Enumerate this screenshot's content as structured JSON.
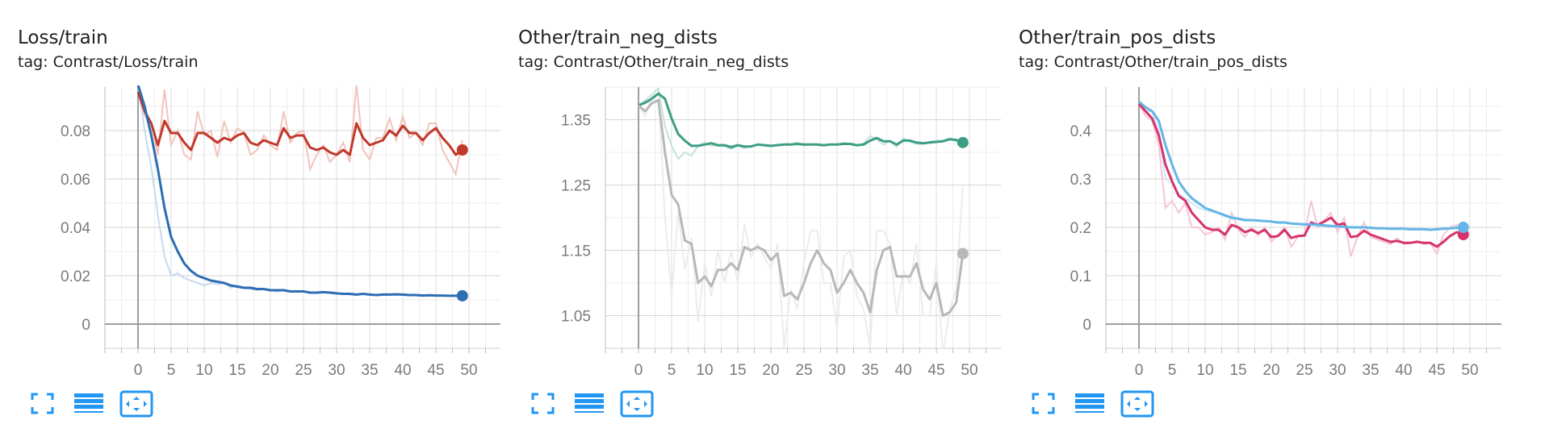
{
  "chart_data": [
    {
      "type": "line",
      "title": "Loss/train",
      "subtitle": "tag: Contrast/Loss/train",
      "xlim": [
        -5,
        55
      ],
      "ylim": [
        -0.01,
        0.098
      ],
      "xticks": [
        "0",
        "5",
        "10",
        "15",
        "20",
        "25",
        "30",
        "35",
        "40",
        "45",
        "50"
      ],
      "xtick_values": [
        0,
        5,
        10,
        15,
        20,
        25,
        30,
        35,
        40,
        45,
        50
      ],
      "yticks": [
        "0",
        "0.02",
        "0.04",
        "0.06",
        "0.08"
      ],
      "ytick_values": [
        0,
        0.02,
        0.04,
        0.06,
        0.08
      ],
      "grid": true,
      "series": [
        {
          "color": "#c0392b",
          "raw_color": "#f1c4bb",
          "x": [
            0,
            1,
            2,
            3,
            4,
            5,
            6,
            7,
            8,
            9,
            10,
            11,
            12,
            13,
            14,
            15,
            16,
            17,
            18,
            19,
            20,
            21,
            22,
            23,
            24,
            25,
            26,
            27,
            28,
            29,
            30,
            31,
            32,
            33,
            34,
            35,
            36,
            37,
            38,
            39,
            40,
            41,
            42,
            43,
            44,
            45,
            46,
            47,
            48,
            49
          ],
          "smoothed": [
            0.096,
            0.088,
            0.083,
            0.074,
            0.084,
            0.079,
            0.079,
            0.075,
            0.072,
            0.079,
            0.079,
            0.077,
            0.075,
            0.077,
            0.076,
            0.078,
            0.079,
            0.075,
            0.074,
            0.076,
            0.075,
            0.074,
            0.081,
            0.077,
            0.078,
            0.078,
            0.073,
            0.072,
            0.073,
            0.071,
            0.07,
            0.072,
            0.07,
            0.083,
            0.077,
            0.074,
            0.075,
            0.076,
            0.08,
            0.078,
            0.082,
            0.079,
            0.079,
            0.076,
            0.079,
            0.081,
            0.077,
            0.074,
            0.07,
            0.072
          ],
          "raw": [
            0.1,
            0.086,
            0.083,
            0.07,
            0.097,
            0.074,
            0.08,
            0.07,
            0.068,
            0.088,
            0.078,
            0.08,
            0.069,
            0.084,
            0.075,
            0.081,
            0.079,
            0.07,
            0.072,
            0.078,
            0.074,
            0.072,
            0.088,
            0.075,
            0.079,
            0.08,
            0.064,
            0.07,
            0.074,
            0.067,
            0.07,
            0.075,
            0.067,
            0.099,
            0.072,
            0.068,
            0.077,
            0.077,
            0.085,
            0.076,
            0.086,
            0.077,
            0.079,
            0.074,
            0.083,
            0.083,
            0.072,
            0.067,
            0.062,
            0.076
          ]
        },
        {
          "color": "#2d6db3",
          "raw_color": "#c6daf0",
          "x": [
            0,
            1,
            2,
            3,
            4,
            5,
            6,
            7,
            8,
            9,
            10,
            11,
            12,
            13,
            14,
            15,
            16,
            17,
            18,
            19,
            20,
            21,
            22,
            23,
            24,
            25,
            26,
            27,
            28,
            29,
            30,
            31,
            32,
            33,
            34,
            35,
            36,
            37,
            38,
            39,
            40,
            41,
            42,
            43,
            44,
            45,
            46,
            47,
            48,
            49
          ],
          "smoothed": [
            0.099,
            0.09,
            0.078,
            0.064,
            0.048,
            0.036,
            0.03,
            0.025,
            0.022,
            0.02,
            0.019,
            0.018,
            0.0175,
            0.017,
            0.016,
            0.0155,
            0.015,
            0.015,
            0.0145,
            0.0145,
            0.014,
            0.014,
            0.014,
            0.0135,
            0.0135,
            0.0135,
            0.013,
            0.013,
            0.0132,
            0.013,
            0.0127,
            0.0125,
            0.0125,
            0.0122,
            0.0125,
            0.0122,
            0.012,
            0.0122,
            0.0122,
            0.0123,
            0.0122,
            0.012,
            0.012,
            0.0118,
            0.0119,
            0.0118,
            0.0118,
            0.0117,
            0.0117,
            0.0117
          ],
          "raw": [
            0.099,
            0.08,
            0.065,
            0.045,
            0.028,
            0.02,
            0.021,
            0.019,
            0.018,
            0.017,
            0.016,
            0.017,
            0.0165,
            0.017,
            0.015,
            0.016,
            0.015,
            0.0145,
            0.014,
            0.0145,
            0.014,
            0.0135,
            0.014,
            0.0135,
            0.0133,
            0.0135,
            0.013,
            0.0128,
            0.0132,
            0.013,
            0.0125,
            0.0125,
            0.0122,
            0.012,
            0.0125,
            0.0122,
            0.012,
            0.0122,
            0.0122,
            0.0123,
            0.012,
            0.0118,
            0.012,
            0.0118,
            0.0119,
            0.0118,
            0.0118,
            0.0116,
            0.0117,
            0.0117
          ]
        }
      ]
    },
    {
      "type": "line",
      "title": "Other/train_neg_dists",
      "subtitle": "tag: Contrast/Other/train_neg_dists",
      "xlim": [
        -5,
        55
      ],
      "ylim": [
        1.0,
        1.4
      ],
      "xticks": [
        "0",
        "5",
        "10",
        "15",
        "20",
        "25",
        "30",
        "35",
        "40",
        "45",
        "50"
      ],
      "xtick_values": [
        0,
        5,
        10,
        15,
        20,
        25,
        30,
        35,
        40,
        45,
        50
      ],
      "yticks": [
        "1.05",
        "1.15",
        "1.25",
        "1.35"
      ],
      "ytick_values": [
        1.05,
        1.15,
        1.25,
        1.35
      ],
      "grid": true,
      "series": [
        {
          "color": "#3d9e84",
          "raw_color": "#c5e3da",
          "x": [
            0,
            1,
            2,
            3,
            4,
            5,
            6,
            7,
            8,
            9,
            10,
            11,
            12,
            13,
            14,
            15,
            16,
            17,
            18,
            19,
            20,
            21,
            22,
            23,
            24,
            25,
            26,
            27,
            28,
            29,
            30,
            31,
            32,
            33,
            34,
            35,
            36,
            37,
            38,
            39,
            40,
            41,
            42,
            43,
            44,
            45,
            46,
            47,
            48,
            49
          ],
          "smoothed": [
            1.372,
            1.376,
            1.382,
            1.39,
            1.382,
            1.352,
            1.328,
            1.318,
            1.31,
            1.31,
            1.312,
            1.314,
            1.311,
            1.311,
            1.308,
            1.311,
            1.309,
            1.309,
            1.312,
            1.311,
            1.31,
            1.311,
            1.312,
            1.312,
            1.313,
            1.312,
            1.312,
            1.312,
            1.311,
            1.312,
            1.312,
            1.313,
            1.313,
            1.311,
            1.312,
            1.318,
            1.322,
            1.317,
            1.317,
            1.312,
            1.318,
            1.318,
            1.315,
            1.314,
            1.315,
            1.316,
            1.317,
            1.32,
            1.319,
            1.315
          ],
          "raw": [
            1.372,
            1.38,
            1.388,
            1.398,
            1.34,
            1.31,
            1.29,
            1.3,
            1.295,
            1.31,
            1.315,
            1.31,
            1.31,
            1.309,
            1.305,
            1.31,
            1.306,
            1.31,
            1.312,
            1.31,
            1.309,
            1.312,
            1.312,
            1.312,
            1.315,
            1.31,
            1.313,
            1.311,
            1.31,
            1.313,
            1.312,
            1.315,
            1.312,
            1.31,
            1.314,
            1.325,
            1.32,
            1.312,
            1.318,
            1.308,
            1.322,
            1.316,
            1.313,
            1.313,
            1.316,
            1.318,
            1.318,
            1.322,
            1.317,
            1.313
          ]
        },
        {
          "color": "#b8b8b8",
          "raw_color": "#ececec",
          "x": [
            0,
            1,
            2,
            3,
            4,
            5,
            6,
            7,
            8,
            9,
            10,
            11,
            12,
            13,
            14,
            15,
            16,
            17,
            18,
            19,
            20,
            21,
            22,
            23,
            24,
            25,
            26,
            27,
            28,
            29,
            30,
            31,
            32,
            33,
            34,
            35,
            36,
            37,
            38,
            39,
            40,
            41,
            42,
            43,
            44,
            45,
            46,
            47,
            48,
            49
          ],
          "smoothed": [
            1.372,
            1.363,
            1.375,
            1.38,
            1.3,
            1.235,
            1.22,
            1.165,
            1.16,
            1.1,
            1.11,
            1.095,
            1.12,
            1.12,
            1.13,
            1.12,
            1.155,
            1.15,
            1.155,
            1.15,
            1.135,
            1.145,
            1.08,
            1.085,
            1.075,
            1.1,
            1.13,
            1.15,
            1.13,
            1.12,
            1.085,
            1.1,
            1.12,
            1.1,
            1.085,
            1.055,
            1.12,
            1.15,
            1.155,
            1.11,
            1.11,
            1.11,
            1.13,
            1.09,
            1.075,
            1.1,
            1.05,
            1.055,
            1.07,
            1.145
          ],
          "raw": [
            1.372,
            1.355,
            1.385,
            1.39,
            1.2,
            1.08,
            1.21,
            1.12,
            1.17,
            1.04,
            1.13,
            1.08,
            1.15,
            1.1,
            1.15,
            1.1,
            1.19,
            1.14,
            1.16,
            1.14,
            1.12,
            1.16,
            1.0,
            1.09,
            1.06,
            1.13,
            1.18,
            1.18,
            1.1,
            1.1,
            1.03,
            1.14,
            1.15,
            1.08,
            1.06,
            1.0,
            1.18,
            1.18,
            1.16,
            1.05,
            1.12,
            1.1,
            1.16,
            1.05,
            1.05,
            1.13,
            0.99,
            1.06,
            1.09,
            1.25
          ]
        }
      ]
    },
    {
      "type": "line",
      "title": "Other/train_pos_dists",
      "subtitle": "tag: Contrast/Other/train_pos_dists",
      "xlim": [
        -5,
        55
      ],
      "ylim": [
        -0.05,
        0.49
      ],
      "xticks": [
        "0",
        "5",
        "10",
        "15",
        "20",
        "25",
        "30",
        "35",
        "40",
        "45",
        "50"
      ],
      "xtick_values": [
        0,
        5,
        10,
        15,
        20,
        25,
        30,
        35,
        40,
        45,
        50
      ],
      "yticks": [
        "0",
        "0.1",
        "0.2",
        "0.3",
        "0.4"
      ],
      "ytick_values": [
        0,
        0.1,
        0.2,
        0.3,
        0.4
      ],
      "grid": true,
      "series": [
        {
          "color": "#d6336c",
          "raw_color": "#f5c6d6",
          "x": [
            0,
            1,
            2,
            3,
            4,
            5,
            6,
            7,
            8,
            9,
            10,
            11,
            12,
            13,
            14,
            15,
            16,
            17,
            18,
            19,
            20,
            21,
            22,
            23,
            24,
            25,
            26,
            27,
            28,
            29,
            30,
            31,
            32,
            33,
            34,
            35,
            36,
            37,
            38,
            39,
            40,
            41,
            42,
            43,
            44,
            45,
            46,
            47,
            48,
            49
          ],
          "smoothed": [
            0.455,
            0.44,
            0.425,
            0.39,
            0.33,
            0.295,
            0.265,
            0.255,
            0.23,
            0.215,
            0.2,
            0.195,
            0.195,
            0.185,
            0.205,
            0.2,
            0.19,
            0.195,
            0.188,
            0.195,
            0.18,
            0.182,
            0.195,
            0.178,
            0.182,
            0.183,
            0.21,
            0.205,
            0.212,
            0.22,
            0.205,
            0.208,
            0.18,
            0.182,
            0.193,
            0.185,
            0.18,
            0.175,
            0.17,
            0.172,
            0.168,
            0.168,
            0.17,
            0.168,
            0.168,
            0.16,
            0.17,
            0.182,
            0.19,
            0.185
          ],
          "raw": [
            0.455,
            0.43,
            0.42,
            0.37,
            0.24,
            0.255,
            0.23,
            0.25,
            0.2,
            0.2,
            0.185,
            0.19,
            0.2,
            0.175,
            0.23,
            0.195,
            0.18,
            0.2,
            0.183,
            0.2,
            0.17,
            0.185,
            0.2,
            0.16,
            0.18,
            0.185,
            0.255,
            0.2,
            0.215,
            0.23,
            0.19,
            0.22,
            0.14,
            0.18,
            0.21,
            0.18,
            0.175,
            0.17,
            0.165,
            0.178,
            0.165,
            0.168,
            0.172,
            0.165,
            0.168,
            0.145,
            0.185,
            0.2,
            0.205,
            0.175
          ]
        },
        {
          "color": "#64b5e8",
          "raw_color": "#cfe7f6",
          "x": [
            0,
            1,
            2,
            3,
            4,
            5,
            6,
            7,
            8,
            9,
            10,
            11,
            12,
            13,
            14,
            15,
            16,
            17,
            18,
            19,
            20,
            21,
            22,
            23,
            24,
            25,
            26,
            27,
            28,
            29,
            30,
            31,
            32,
            33,
            34,
            35,
            36,
            37,
            38,
            39,
            40,
            41,
            42,
            43,
            44,
            45,
            46,
            47,
            48,
            49
          ],
          "smoothed": [
            0.46,
            0.448,
            0.44,
            0.42,
            0.37,
            0.33,
            0.295,
            0.275,
            0.26,
            0.25,
            0.24,
            0.235,
            0.23,
            0.225,
            0.22,
            0.218,
            0.215,
            0.215,
            0.214,
            0.213,
            0.212,
            0.21,
            0.21,
            0.208,
            0.207,
            0.206,
            0.206,
            0.205,
            0.204,
            0.203,
            0.202,
            0.201,
            0.2,
            0.2,
            0.2,
            0.199,
            0.198,
            0.198,
            0.197,
            0.197,
            0.197,
            0.196,
            0.196,
            0.196,
            0.195,
            0.196,
            0.197,
            0.198,
            0.199,
            0.2
          ],
          "raw": [
            0.46,
            0.44,
            0.44,
            0.4,
            0.3,
            0.29,
            0.27,
            0.26,
            0.25,
            0.24,
            0.235,
            0.232,
            0.228,
            0.222,
            0.218,
            0.216,
            0.214,
            0.214,
            0.214,
            0.213,
            0.212,
            0.21,
            0.21,
            0.207,
            0.207,
            0.206,
            0.206,
            0.205,
            0.204,
            0.203,
            0.202,
            0.201,
            0.2,
            0.2,
            0.2,
            0.199,
            0.198,
            0.198,
            0.197,
            0.197,
            0.197,
            0.196,
            0.196,
            0.196,
            0.195,
            0.196,
            0.197,
            0.198,
            0.199,
            0.2
          ]
        }
      ]
    }
  ],
  "toolbar": {
    "icons": [
      "fullscreen-icon",
      "list-icon",
      "fit-domain-icon"
    ],
    "accent": "#2196f3"
  }
}
